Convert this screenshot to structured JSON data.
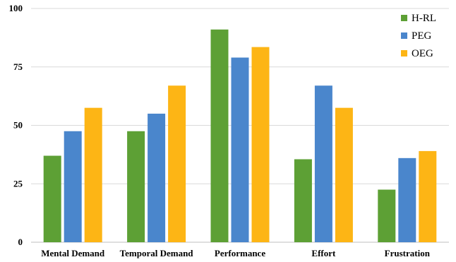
{
  "chart_data": {
    "type": "bar",
    "categories": [
      "Mental Demand",
      "Temporal Demand",
      "Performance",
      "Effort",
      "Frustration"
    ],
    "series": [
      {
        "name": "H-RL",
        "color": "#5da035",
        "values": [
          37,
          47.5,
          91,
          35.5,
          22.5
        ]
      },
      {
        "name": "PEG",
        "color": "#4a86cc",
        "values": [
          47.5,
          55,
          79,
          67,
          36
        ]
      },
      {
        "name": "OEG",
        "color": "#fdb515",
        "values": [
          57.5,
          67,
          83.5,
          57.5,
          39
        ]
      }
    ],
    "yticks": [
      "0",
      "25",
      "50",
      "75",
      "100"
    ],
    "ylim": [
      0,
      100
    ],
    "grid": true,
    "legend_position": "top-right"
  }
}
